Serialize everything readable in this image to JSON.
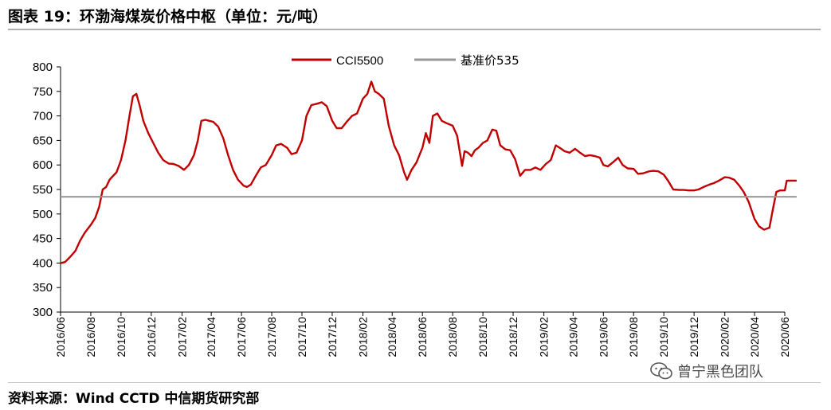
{
  "header": {
    "title": "图表 19：环渤海煤炭价格中枢（单位：元/吨）"
  },
  "footer": {
    "source": "资料来源：Wind CCTD 中信期货研究部"
  },
  "watermark": {
    "text": "曾宁黑色团队",
    "icon": "wechat-icon"
  },
  "chart_data": {
    "type": "line",
    "title": "",
    "xlabel": "",
    "ylabel": "",
    "ylim": [
      300,
      800
    ],
    "yticks": [
      300,
      350,
      400,
      450,
      500,
      550,
      600,
      650,
      700,
      750,
      800
    ],
    "x_range": [
      "2016-06",
      "2020-06"
    ],
    "xticks": [
      "2016/06",
      "2016/08",
      "2016/10",
      "2016/12",
      "2017/02",
      "2017/04",
      "2017/06",
      "2017/08",
      "2017/10",
      "2017/12",
      "2018/02",
      "2018/04",
      "2018/06",
      "2018/08",
      "2018/10",
      "2018/12",
      "2019/02",
      "2019/04",
      "2019/06",
      "2019/08",
      "2019/10",
      "2019/12",
      "2020/02",
      "2020/04",
      "2020/06"
    ],
    "grid": false,
    "legend_position": "top-center",
    "series": [
      {
        "name": "CCI5500",
        "color": "#c00000",
        "points": [
          [
            "2016-06-01",
            400
          ],
          [
            "2016-06-10",
            402
          ],
          [
            "2016-06-20",
            412
          ],
          [
            "2016-07-01",
            425
          ],
          [
            "2016-07-10",
            445
          ],
          [
            "2016-07-20",
            462
          ],
          [
            "2016-08-01",
            478
          ],
          [
            "2016-08-10",
            492
          ],
          [
            "2016-08-18",
            515
          ],
          [
            "2016-08-25",
            550
          ],
          [
            "2016-09-01",
            555
          ],
          [
            "2016-09-08",
            570
          ],
          [
            "2016-09-15",
            578
          ],
          [
            "2016-09-22",
            585
          ],
          [
            "2016-10-01",
            610
          ],
          [
            "2016-10-10",
            650
          ],
          [
            "2016-10-18",
            700
          ],
          [
            "2016-10-25",
            740
          ],
          [
            "2016-11-01",
            745
          ],
          [
            "2016-11-08",
            720
          ],
          [
            "2016-11-15",
            690
          ],
          [
            "2016-11-25",
            665
          ],
          [
            "2016-12-05",
            645
          ],
          [
            "2016-12-15",
            625
          ],
          [
            "2016-12-25",
            610
          ],
          [
            "2017-01-05",
            603
          ],
          [
            "2017-01-15",
            602
          ],
          [
            "2017-01-25",
            598
          ],
          [
            "2017-02-05",
            590
          ],
          [
            "2017-02-15",
            600
          ],
          [
            "2017-02-25",
            620
          ],
          [
            "2017-03-05",
            650
          ],
          [
            "2017-03-12",
            690
          ],
          [
            "2017-03-20",
            692
          ],
          [
            "2017-03-28",
            690
          ],
          [
            "2017-04-05",
            688
          ],
          [
            "2017-04-15",
            678
          ],
          [
            "2017-04-25",
            655
          ],
          [
            "2017-05-05",
            620
          ],
          [
            "2017-05-15",
            590
          ],
          [
            "2017-05-25",
            570
          ],
          [
            "2017-06-05",
            558
          ],
          [
            "2017-06-12",
            555
          ],
          [
            "2017-06-20",
            560
          ],
          [
            "2017-07-01",
            580
          ],
          [
            "2017-07-10",
            595
          ],
          [
            "2017-07-20",
            600
          ],
          [
            "2017-08-01",
            620
          ],
          [
            "2017-08-10",
            640
          ],
          [
            "2017-08-20",
            643
          ],
          [
            "2017-09-01",
            635
          ],
          [
            "2017-09-10",
            622
          ],
          [
            "2017-09-20",
            625
          ],
          [
            "2017-10-01",
            650
          ],
          [
            "2017-10-10",
            700
          ],
          [
            "2017-10-20",
            722
          ],
          [
            "2017-11-01",
            725
          ],
          [
            "2017-11-10",
            728
          ],
          [
            "2017-11-20",
            720
          ],
          [
            "2017-12-01",
            690
          ],
          [
            "2017-12-10",
            675
          ],
          [
            "2017-12-20",
            675
          ],
          [
            "2018-01-01",
            690
          ],
          [
            "2018-01-10",
            700
          ],
          [
            "2018-01-20",
            705
          ],
          [
            "2018-02-01",
            735
          ],
          [
            "2018-02-10",
            745
          ],
          [
            "2018-02-18",
            770
          ],
          [
            "2018-02-25",
            750
          ],
          [
            "2018-03-05",
            745
          ],
          [
            "2018-03-15",
            735
          ],
          [
            "2018-03-25",
            680
          ],
          [
            "2018-04-05",
            640
          ],
          [
            "2018-04-15",
            620
          ],
          [
            "2018-04-25",
            585
          ],
          [
            "2018-05-01",
            570
          ],
          [
            "2018-05-10",
            590
          ],
          [
            "2018-05-20",
            605
          ],
          [
            "2018-06-01",
            635
          ],
          [
            "2018-06-08",
            665
          ],
          [
            "2018-06-15",
            645
          ],
          [
            "2018-06-22",
            700
          ],
          [
            "2018-07-01",
            705
          ],
          [
            "2018-07-10",
            690
          ],
          [
            "2018-07-20",
            685
          ],
          [
            "2018-08-01",
            680
          ],
          [
            "2018-08-10",
            660
          ],
          [
            "2018-08-20",
            598
          ],
          [
            "2018-08-25",
            628
          ],
          [
            "2018-09-01",
            625
          ],
          [
            "2018-09-08",
            618
          ],
          [
            "2018-09-15",
            630
          ],
          [
            "2018-09-22",
            635
          ],
          [
            "2018-10-01",
            645
          ],
          [
            "2018-10-10",
            650
          ],
          [
            "2018-10-20",
            672
          ],
          [
            "2018-10-28",
            670
          ],
          [
            "2018-11-05",
            640
          ],
          [
            "2018-11-15",
            632
          ],
          [
            "2018-11-25",
            630
          ],
          [
            "2018-12-05",
            612
          ],
          [
            "2018-12-15",
            578
          ],
          [
            "2018-12-25",
            590
          ],
          [
            "2019-01-05",
            590
          ],
          [
            "2019-01-15",
            595
          ],
          [
            "2019-01-25",
            590
          ],
          [
            "2019-02-05",
            602
          ],
          [
            "2019-02-15",
            610
          ],
          [
            "2019-02-25",
            640
          ],
          [
            "2019-03-05",
            635
          ],
          [
            "2019-03-15",
            628
          ],
          [
            "2019-03-25",
            625
          ],
          [
            "2019-04-05",
            633
          ],
          [
            "2019-04-15",
            625
          ],
          [
            "2019-04-25",
            618
          ],
          [
            "2019-05-05",
            620
          ],
          [
            "2019-05-15",
            618
          ],
          [
            "2019-05-25",
            615
          ],
          [
            "2019-06-01",
            600
          ],
          [
            "2019-06-10",
            597
          ],
          [
            "2019-06-20",
            605
          ],
          [
            "2019-07-01",
            615
          ],
          [
            "2019-07-10",
            600
          ],
          [
            "2019-07-20",
            593
          ],
          [
            "2019-08-01",
            592
          ],
          [
            "2019-08-10",
            582
          ],
          [
            "2019-08-20",
            583
          ],
          [
            "2019-09-01",
            587
          ],
          [
            "2019-09-10",
            588
          ],
          [
            "2019-09-20",
            587
          ],
          [
            "2019-10-01",
            580
          ],
          [
            "2019-10-10",
            567
          ],
          [
            "2019-10-20",
            550
          ],
          [
            "2019-11-01",
            549
          ],
          [
            "2019-11-10",
            549
          ],
          [
            "2019-11-20",
            548
          ],
          [
            "2019-12-01",
            548
          ],
          [
            "2019-12-10",
            550
          ],
          [
            "2019-12-20",
            555
          ],
          [
            "2020-01-01",
            560
          ],
          [
            "2020-01-10",
            563
          ],
          [
            "2020-01-20",
            568
          ],
          [
            "2020-02-01",
            575
          ],
          [
            "2020-02-10",
            574
          ],
          [
            "2020-02-20",
            570
          ],
          [
            "2020-03-01",
            558
          ],
          [
            "2020-03-10",
            545
          ],
          [
            "2020-03-20",
            525
          ],
          [
            "2020-04-01",
            490
          ],
          [
            "2020-04-10",
            475
          ],
          [
            "2020-04-20",
            468
          ],
          [
            "2020-05-01",
            472
          ],
          [
            "2020-05-08",
            510
          ],
          [
            "2020-05-15",
            545
          ],
          [
            "2020-05-22",
            548
          ],
          [
            "2020-06-01",
            548
          ],
          [
            "2020-06-05",
            568
          ],
          [
            "2020-06-15",
            568
          ],
          [
            "2020-06-25",
            568
          ]
        ]
      },
      {
        "name": "基准价535",
        "color": "#999999",
        "points": [
          [
            "2016-06-01",
            535
          ],
          [
            "2020-06-25",
            535
          ]
        ]
      }
    ]
  }
}
